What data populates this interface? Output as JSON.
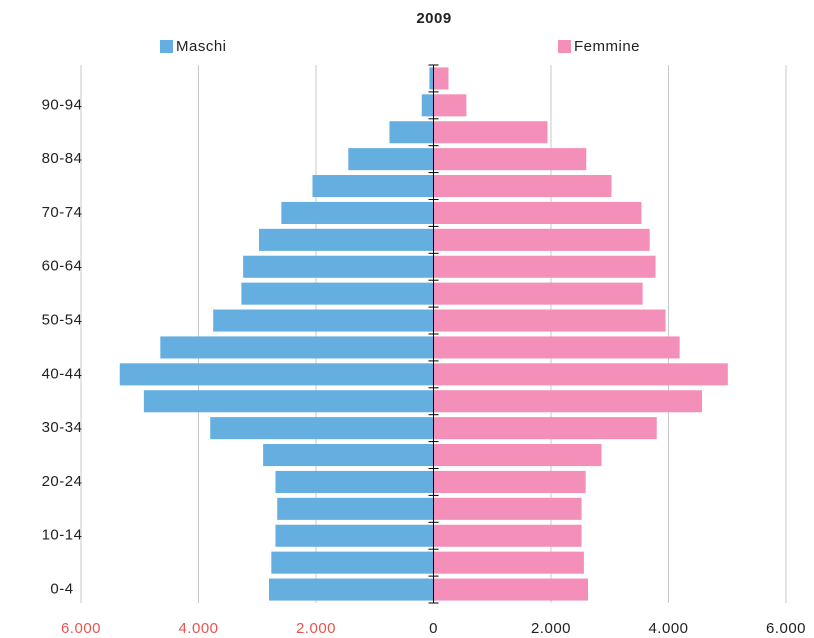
{
  "chart_data": {
    "type": "pyramid",
    "title": "2009",
    "categories": [
      "0-4",
      null,
      "10-14",
      null,
      "20-24",
      null,
      "30-34",
      null,
      "40-44",
      null,
      "50-54",
      null,
      "60-64",
      null,
      "70-74",
      null,
      "80-84",
      null,
      "90-94",
      null
    ],
    "series": [
      {
        "name": "Maschi",
        "color": "#64aee0",
        "side": "left",
        "values": [
          2800,
          2760,
          2690,
          2660,
          2690,
          2900,
          3800,
          4930,
          5340,
          4650,
          3750,
          3270,
          3240,
          2970,
          2590,
          2060,
          1450,
          750,
          200,
          70
        ]
      },
      {
        "name": "Femmine",
        "color": "#f48fba",
        "side": "right",
        "values": [
          2630,
          2560,
          2520,
          2520,
          2590,
          2860,
          3800,
          4570,
          5010,
          4190,
          3950,
          3560,
          3780,
          3680,
          3540,
          3030,
          2600,
          1940,
          560,
          255
        ]
      }
    ],
    "xlim": [
      -6000,
      6000
    ],
    "xticks": [
      {
        "value": -6000,
        "label": "6.000"
      },
      {
        "value": -4000,
        "label": "4.000"
      },
      {
        "value": -2000,
        "label": "2.000"
      },
      0,
      {
        "value": 2000,
        "label": "2.000"
      },
      {
        "value": 4000,
        "label": "4.000"
      },
      {
        "value": 6000,
        "label": "6.000"
      }
    ],
    "grid": true
  }
}
